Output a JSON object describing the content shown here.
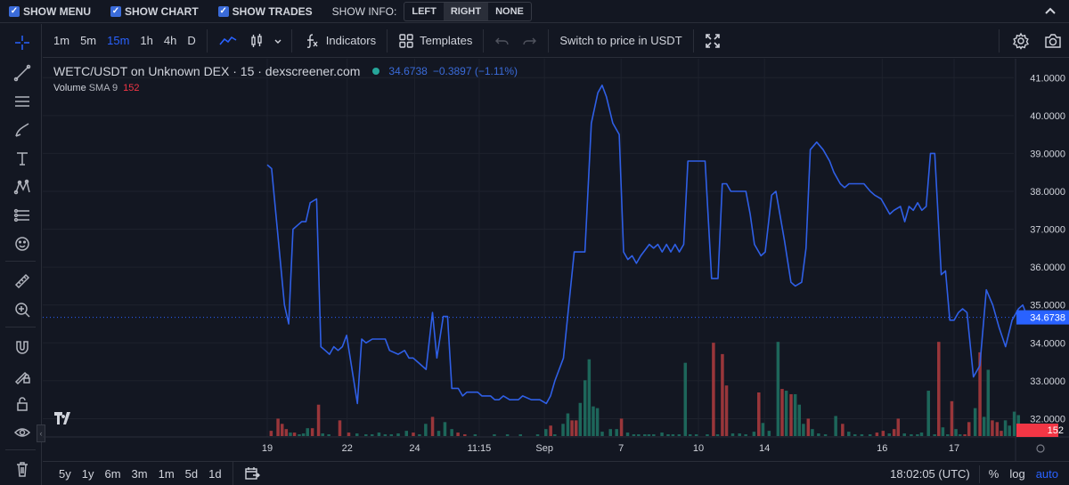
{
  "topbar": {
    "show_menu": "SHOW MENU",
    "show_chart": "SHOW CHART",
    "show_trades": "SHOW TRADES",
    "show_info": "SHOW INFO:",
    "info_options": [
      "LEFT",
      "RIGHT",
      "NONE"
    ],
    "info_selected": "RIGHT"
  },
  "toolbar": {
    "timeframes": [
      "1m",
      "5m",
      "15m",
      "1h",
      "4h",
      "D"
    ],
    "active_timeframe": "15m",
    "indicators_label": "Indicators",
    "templates_label": "Templates",
    "switch_label": "Switch to price in USDT"
  },
  "legend": {
    "symbol": "WETC/USDT on Unknown DEX · 15 · dexscreener.com",
    "price": "34.6738",
    "change": "−0.3897 (−1.11%)",
    "volume_label": "Volume",
    "volume_sma": "SMA 9",
    "volume_value": "152"
  },
  "price_label": "34.6738",
  "volume_label_axis": "152",
  "bottombar": {
    "ranges": [
      "5y",
      "1y",
      "6m",
      "3m",
      "1m",
      "5d",
      "1d"
    ],
    "time": "18:02:05 (UTC)",
    "percent": "%",
    "log": "log",
    "auto": "auto"
  },
  "colors": {
    "line": "#2f5fe6",
    "up": "#26a69a",
    "down": "#ef5350",
    "bg": "#131722"
  },
  "chart_data": {
    "type": "line",
    "title": "WETC/USDT on Unknown DEX · 15 · dexscreener.com",
    "y_ticks": [
      32,
      33,
      34,
      35,
      36,
      37,
      38,
      39,
      40,
      41
    ],
    "y_tick_labels": [
      "32.0000",
      "33.0000",
      "34.0000",
      "35.0000",
      "36.0000",
      "37.0000",
      "38.0000",
      "39.0000",
      "40.0000",
      "41.0000"
    ],
    "ylim": [
      31.4,
      41.5
    ],
    "x_ticks": [
      {
        "label": "19",
        "t": 0
      },
      {
        "label": "22",
        "t": 0.1164
      },
      {
        "label": "24",
        "t": 0.2146
      },
      {
        "label": "11:15",
        "t": 0.3086
      },
      {
        "label": "Sep",
        "t": 0.4036
      },
      {
        "label": "7",
        "t": 0.5152
      },
      {
        "label": "10",
        "t": 0.6278
      },
      {
        "label": "14",
        "t": 0.7239
      },
      {
        "label": "16",
        "t": 0.8953
      },
      {
        "label": "17",
        "t": 1.0
      }
    ],
    "series": [
      {
        "values": [
          [
            0.0,
            38.7
          ],
          [
            0.0063,
            38.6
          ],
          [
            0.025,
            35.0
          ],
          [
            0.0313,
            34.5
          ],
          [
            0.0375,
            37.0
          ],
          [
            0.0438,
            37.1
          ],
          [
            0.05,
            37.2
          ],
          [
            0.0563,
            37.2
          ],
          [
            0.0625,
            37.7
          ],
          [
            0.0719,
            37.8
          ],
          [
            0.0781,
            33.9
          ],
          [
            0.0844,
            33.8
          ],
          [
            0.0906,
            33.7
          ],
          [
            0.0969,
            33.9
          ],
          [
            0.1031,
            33.8
          ],
          [
            0.1094,
            33.9
          ],
          [
            0.1156,
            34.2
          ],
          [
            0.1313,
            32.4
          ],
          [
            0.1375,
            34.1
          ],
          [
            0.1438,
            34.0
          ],
          [
            0.1531,
            34.1
          ],
          [
            0.1719,
            34.1
          ],
          [
            0.1781,
            33.8
          ],
          [
            0.1906,
            33.7
          ],
          [
            0.2,
            33.8
          ],
          [
            0.2063,
            33.6
          ],
          [
            0.2125,
            33.6
          ],
          [
            0.2188,
            33.5
          ],
          [
            0.2313,
            33.3
          ],
          [
            0.2406,
            34.8
          ],
          [
            0.2469,
            33.6
          ],
          [
            0.2563,
            34.7
          ],
          [
            0.2625,
            34.7
          ],
          [
            0.2688,
            32.8
          ],
          [
            0.2781,
            32.8
          ],
          [
            0.2844,
            32.6
          ],
          [
            0.2906,
            32.7
          ],
          [
            0.2969,
            32.7
          ],
          [
            0.3063,
            32.7
          ],
          [
            0.3125,
            32.6
          ],
          [
            0.325,
            32.6
          ],
          [
            0.3313,
            32.5
          ],
          [
            0.3375,
            32.5
          ],
          [
            0.3438,
            32.6
          ],
          [
            0.3531,
            32.5
          ],
          [
            0.3656,
            32.5
          ],
          [
            0.3719,
            32.6
          ],
          [
            0.3844,
            32.5
          ],
          [
            0.3969,
            32.5
          ],
          [
            0.4063,
            32.4
          ],
          [
            0.4125,
            32.6
          ],
          [
            0.4188,
            33.0
          ],
          [
            0.4313,
            33.6
          ],
          [
            0.4469,
            36.4
          ],
          [
            0.4625,
            36.4
          ],
          [
            0.4719,
            39.8
          ],
          [
            0.4813,
            40.6
          ],
          [
            0.4875,
            40.8
          ],
          [
            0.4938,
            40.5
          ],
          [
            0.5031,
            39.8
          ],
          [
            0.5125,
            39.5
          ],
          [
            0.5188,
            36.4
          ],
          [
            0.525,
            36.2
          ],
          [
            0.5313,
            36.3
          ],
          [
            0.5375,
            36.1
          ],
          [
            0.5438,
            36.3
          ],
          [
            0.5563,
            36.6
          ],
          [
            0.5625,
            36.5
          ],
          [
            0.5688,
            36.6
          ],
          [
            0.575,
            36.4
          ],
          [
            0.5813,
            36.6
          ],
          [
            0.5875,
            36.4
          ],
          [
            0.5938,
            36.6
          ],
          [
            0.6,
            36.4
          ],
          [
            0.6063,
            36.6
          ],
          [
            0.6125,
            38.8
          ],
          [
            0.6188,
            38.8
          ],
          [
            0.6313,
            38.8
          ],
          [
            0.6375,
            38.8
          ],
          [
            0.6469,
            35.7
          ],
          [
            0.6563,
            35.7
          ],
          [
            0.6625,
            38.2
          ],
          [
            0.6688,
            38.2
          ],
          [
            0.675,
            38.0
          ],
          [
            0.6844,
            38.0
          ],
          [
            0.6969,
            38.0
          ],
          [
            0.7031,
            37.4
          ],
          [
            0.7094,
            36.6
          ],
          [
            0.7188,
            36.3
          ],
          [
            0.725,
            36.4
          ],
          [
            0.7344,
            37.9
          ],
          [
            0.7406,
            38.0
          ],
          [
            0.7531,
            36.7
          ],
          [
            0.7625,
            35.6
          ],
          [
            0.7688,
            35.5
          ],
          [
            0.7781,
            35.6
          ],
          [
            0.7844,
            36.5
          ],
          [
            0.7906,
            39.1
          ],
          [
            0.8,
            39.3
          ],
          [
            0.8094,
            39.1
          ],
          [
            0.8188,
            38.8
          ],
          [
            0.825,
            38.5
          ],
          [
            0.8344,
            38.2
          ],
          [
            0.8406,
            38.1
          ],
          [
            0.8469,
            38.2
          ],
          [
            0.8563,
            38.2
          ],
          [
            0.8688,
            38.2
          ],
          [
            0.8781,
            38.0
          ],
          [
            0.8844,
            37.9
          ],
          [
            0.8938,
            37.8
          ],
          [
            0.9,
            37.6
          ],
          [
            0.9063,
            37.4
          ],
          [
            0.9125,
            37.5
          ],
          [
            0.9219,
            37.6
          ],
          [
            0.9281,
            37.2
          ],
          [
            0.9344,
            37.6
          ],
          [
            0.9406,
            37.5
          ],
          [
            0.9469,
            37.7
          ],
          [
            0.9531,
            37.5
          ],
          [
            0.9594,
            37.6
          ],
          [
            0.9656,
            39.0
          ],
          [
            0.9719,
            39.0
          ],
          [
            0.9813,
            35.8
          ],
          [
            0.9875,
            35.9
          ],
          [
            0.9938,
            34.6
          ],
          [
            1.0,
            34.6
          ],
          [
            1.0063,
            34.8
          ],
          [
            1.0125,
            34.9
          ],
          [
            1.0188,
            34.8
          ],
          [
            1.0281,
            33.1
          ],
          [
            1.0375,
            33.4
          ],
          [
            1.0469,
            35.4
          ],
          [
            1.0563,
            35.0
          ],
          [
            1.0656,
            34.4
          ],
          [
            1.075,
            33.9
          ],
          [
            1.0844,
            34.6
          ],
          [
            1.0938,
            34.9
          ],
          [
            1.1,
            35.0
          ],
          [
            1.1063,
            34.7
          ]
        ]
      }
    ],
    "volume": [
      [
        0.006,
        6,
        "d"
      ],
      [
        0.016,
        20,
        "d"
      ],
      [
        0.022,
        14,
        "d"
      ],
      [
        0.028,
        8,
        "d"
      ],
      [
        0.034,
        4,
        "u"
      ],
      [
        0.04,
        4,
        "d"
      ],
      [
        0.047,
        2,
        "u"
      ],
      [
        0.053,
        3,
        "u"
      ],
      [
        0.059,
        9,
        "u"
      ],
      [
        0.066,
        9,
        "d"
      ],
      [
        0.075,
        36,
        "d"
      ],
      [
        0.081,
        3,
        "u"
      ],
      [
        0.09,
        2,
        "u"
      ],
      [
        0.106,
        18,
        "d"
      ],
      [
        0.119,
        4,
        "d"
      ],
      [
        0.131,
        3,
        "u"
      ],
      [
        0.144,
        2,
        "u"
      ],
      [
        0.153,
        2,
        "u"
      ],
      [
        0.163,
        4,
        "u"
      ],
      [
        0.172,
        2,
        "u"
      ],
      [
        0.181,
        2,
        "u"
      ],
      [
        0.191,
        3,
        "u"
      ],
      [
        0.203,
        6,
        "u"
      ],
      [
        0.213,
        4,
        "d"
      ],
      [
        0.222,
        2,
        "u"
      ],
      [
        0.231,
        14,
        "u"
      ],
      [
        0.241,
        22,
        "d"
      ],
      [
        0.25,
        6,
        "u"
      ],
      [
        0.259,
        16,
        "u"
      ],
      [
        0.269,
        8,
        "u"
      ],
      [
        0.278,
        4,
        "d"
      ],
      [
        0.288,
        2,
        "d"
      ],
      [
        0.303,
        2,
        "u"
      ],
      [
        0.331,
        2,
        "u"
      ],
      [
        0.35,
        2,
        "u"
      ],
      [
        0.369,
        2,
        "u"
      ],
      [
        0.394,
        2,
        "u"
      ],
      [
        0.406,
        8,
        "u"
      ],
      [
        0.413,
        12,
        "d"
      ],
      [
        0.419,
        2,
        "u"
      ],
      [
        0.431,
        14,
        "u"
      ],
      [
        0.438,
        26,
        "u"
      ],
      [
        0.444,
        18,
        "d"
      ],
      [
        0.45,
        18,
        "d"
      ],
      [
        0.456,
        38,
        "u"
      ],
      [
        0.463,
        64,
        "u"
      ],
      [
        0.469,
        88,
        "u"
      ],
      [
        0.475,
        34,
        "u"
      ],
      [
        0.481,
        32,
        "u"
      ],
      [
        0.488,
        5,
        "u"
      ],
      [
        0.5,
        8,
        "u"
      ],
      [
        0.509,
        8,
        "u"
      ],
      [
        0.516,
        20,
        "d"
      ],
      [
        0.525,
        4,
        "u"
      ],
      [
        0.534,
        2,
        "u"
      ],
      [
        0.541,
        2,
        "u"
      ],
      [
        0.55,
        2,
        "u"
      ],
      [
        0.556,
        2,
        "u"
      ],
      [
        0.563,
        2,
        "u"
      ],
      [
        0.575,
        4,
        "u"
      ],
      [
        0.584,
        2,
        "u"
      ],
      [
        0.591,
        2,
        "u"
      ],
      [
        0.6,
        2,
        "u"
      ],
      [
        0.609,
        84,
        "u"
      ],
      [
        0.616,
        2,
        "u"
      ],
      [
        0.625,
        2,
        "u"
      ],
      [
        0.641,
        2,
        "u"
      ],
      [
        0.65,
        107,
        "d"
      ],
      [
        0.656,
        2,
        "u"
      ],
      [
        0.663,
        94,
        "d"
      ],
      [
        0.669,
        58,
        "d"
      ],
      [
        0.678,
        3,
        "u"
      ],
      [
        0.688,
        3,
        "u"
      ],
      [
        0.697,
        2,
        "u"
      ],
      [
        0.709,
        5,
        "u"
      ],
      [
        0.716,
        50,
        "d"
      ],
      [
        0.722,
        15,
        "u"
      ],
      [
        0.731,
        6,
        "u"
      ],
      [
        0.744,
        108,
        "u"
      ],
      [
        0.75,
        54,
        "d"
      ],
      [
        0.756,
        52,
        "u"
      ],
      [
        0.763,
        48,
        "d"
      ],
      [
        0.769,
        48,
        "u"
      ],
      [
        0.775,
        36,
        "u"
      ],
      [
        0.781,
        14,
        "u"
      ],
      [
        0.788,
        20,
        "d"
      ],
      [
        0.794,
        8,
        "u"
      ],
      [
        0.803,
        3,
        "u"
      ],
      [
        0.813,
        2,
        "u"
      ],
      [
        0.828,
        23,
        "u"
      ],
      [
        0.838,
        14,
        "d"
      ],
      [
        0.847,
        5,
        "u"
      ],
      [
        0.856,
        2,
        "u"
      ],
      [
        0.866,
        2,
        "u"
      ],
      [
        0.878,
        2,
        "u"
      ],
      [
        0.888,
        4,
        "d"
      ],
      [
        0.897,
        6,
        "d"
      ],
      [
        0.906,
        3,
        "u"
      ],
      [
        0.913,
        8,
        "d"
      ],
      [
        0.919,
        20,
        "d"
      ],
      [
        0.928,
        3,
        "u"
      ],
      [
        0.938,
        2,
        "u"
      ],
      [
        0.947,
        2,
        "u"
      ],
      [
        0.953,
        4,
        "u"
      ],
      [
        0.963,
        52,
        "u"
      ],
      [
        0.972,
        2,
        "u"
      ],
      [
        0.978,
        108,
        "d"
      ],
      [
        0.984,
        10,
        "u"
      ],
      [
        0.991,
        2,
        "u"
      ],
      [
        0.997,
        40,
        "d"
      ],
      [
        1.003,
        8,
        "u"
      ],
      [
        1.009,
        2,
        "u"
      ],
      [
        1.016,
        2,
        "d"
      ],
      [
        1.022,
        16,
        "d"
      ],
      [
        1.031,
        32,
        "u"
      ],
      [
        1.038,
        96,
        "d"
      ],
      [
        1.044,
        22,
        "u"
      ],
      [
        1.05,
        76,
        "u"
      ],
      [
        1.056,
        18,
        "d"
      ],
      [
        1.063,
        16,
        "d"
      ],
      [
        1.069,
        6,
        "d"
      ],
      [
        1.075,
        18,
        "u"
      ],
      [
        1.081,
        12,
        "u"
      ],
      [
        1.088,
        28,
        "u"
      ],
      [
        1.094,
        24,
        "u"
      ],
      [
        1.1,
        8,
        "d"
      ]
    ]
  }
}
